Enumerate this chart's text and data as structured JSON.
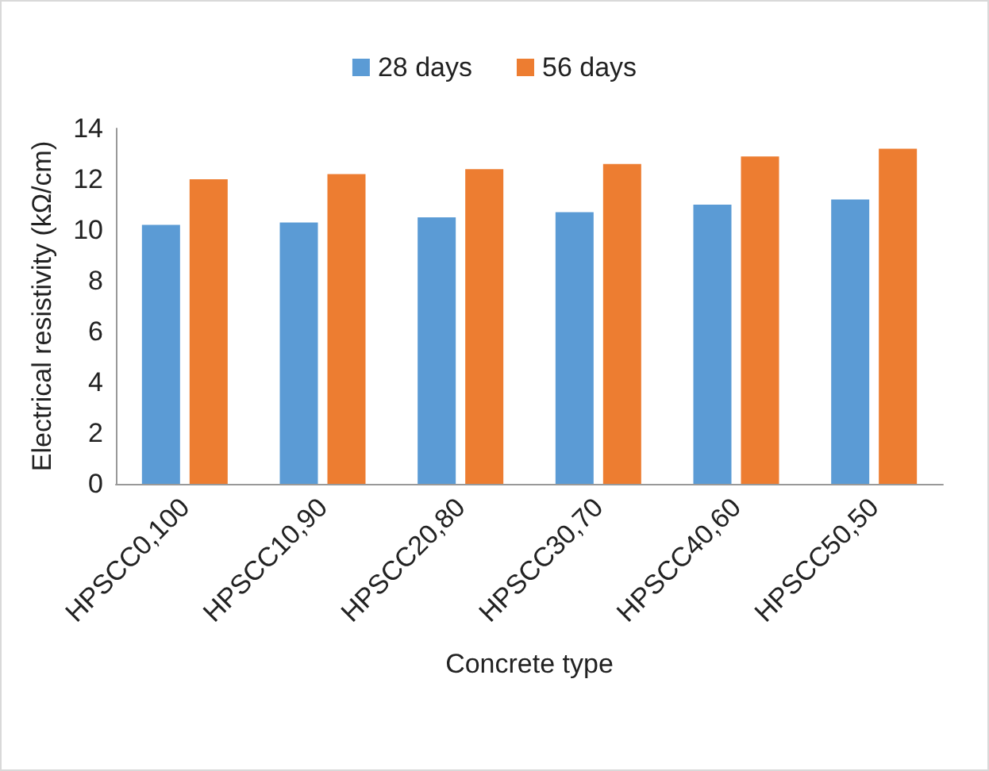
{
  "chart_data": {
    "type": "bar",
    "xlabel": "Concrete type",
    "ylabel": "Electrical resistivity (kΩ/cm)",
    "categories": [
      "HPSCC0,100",
      "HPSCC10,90",
      "HPSCC20,80",
      "HPSCC30,70",
      "HPSCC40,60",
      "HPSCC50,50"
    ],
    "series": [
      {
        "name": "28 days",
        "color": "#5b9bd5",
        "values": [
          10.2,
          10.3,
          10.5,
          10.7,
          11.0,
          11.2
        ]
      },
      {
        "name": "56 days",
        "color": "#ed7d31",
        "values": [
          12.0,
          12.2,
          12.4,
          12.6,
          12.9,
          13.2
        ]
      }
    ],
    "ylim": [
      0,
      14
    ],
    "yticks": [
      0,
      2,
      4,
      6,
      8,
      10,
      12,
      14
    ],
    "grid": false,
    "legend": "top"
  }
}
